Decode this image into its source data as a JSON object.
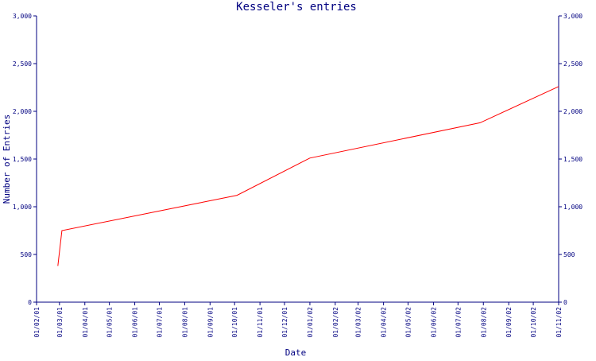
{
  "chart_data": {
    "type": "line",
    "title": "Kesseler's entries",
    "xlabel": "Date",
    "ylabel": "Number of Entries",
    "ylim": [
      0,
      3000
    ],
    "y_ticks": [
      "0",
      "500",
      "1,000",
      "1,500",
      "2,000",
      "2,500",
      "3,000"
    ],
    "x_ticks": [
      "01/02/01",
      "01/03/01",
      "01/04/01",
      "01/05/01",
      "01/06/01",
      "01/07/01",
      "01/08/01",
      "01/09/01",
      "01/10/01",
      "01/11/01",
      "01/12/01",
      "01/01/02",
      "01/02/02",
      "01/03/02",
      "01/04/02",
      "01/05/02",
      "01/06/02",
      "01/07/02",
      "01/08/02",
      "01/09/02",
      "01/10/02",
      "01/11/02"
    ],
    "grid": false,
    "series": [
      {
        "color": "#ff0000",
        "points": [
          {
            "x": "2001-02-27",
            "y": 380
          },
          {
            "x": "2001-03-04",
            "y": 750
          },
          {
            "x": "2001-10-04",
            "y": 1120
          },
          {
            "x": "2002-01-01",
            "y": 1510
          },
          {
            "x": "2002-07-28",
            "y": 1880
          },
          {
            "x": "2002-11-01",
            "y": 2260
          }
        ]
      }
    ],
    "colors": {
      "axis": "#000080",
      "text": "#000080",
      "line": "#ff0000"
    }
  }
}
